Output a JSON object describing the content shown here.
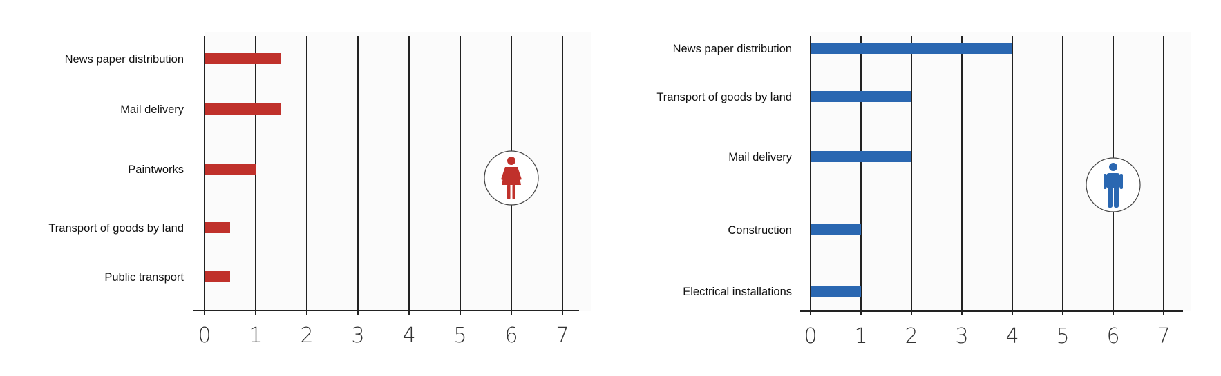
{
  "chart_data": [
    {
      "type": "bar",
      "orientation": "horizontal",
      "icon": "female-person-icon",
      "color": "#c0312b",
      "categories": [
        "News paper distribution",
        "Mail delivery",
        "Paintworks",
        "Transport of goods by land",
        "Public transport"
      ],
      "values": [
        1.5,
        1.5,
        1,
        0.5,
        0.5
      ],
      "xlim": [
        0,
        7
      ],
      "xticks": [
        0,
        1,
        2,
        3,
        4,
        5,
        6,
        7
      ],
      "grid": true,
      "icon_position_x": 6
    },
    {
      "type": "bar",
      "orientation": "horizontal",
      "icon": "male-person-icon",
      "color": "#2a67b1",
      "categories": [
        "News paper distribution",
        "Transport of goods by land",
        "Mail delivery",
        "Construction",
        "Electrical installations"
      ],
      "values": [
        4,
        2,
        2,
        1,
        1
      ],
      "xlim": [
        0,
        7
      ],
      "xticks": [
        0,
        1,
        2,
        3,
        4,
        5,
        6,
        7
      ],
      "grid": true,
      "icon_position_x": 6
    }
  ]
}
